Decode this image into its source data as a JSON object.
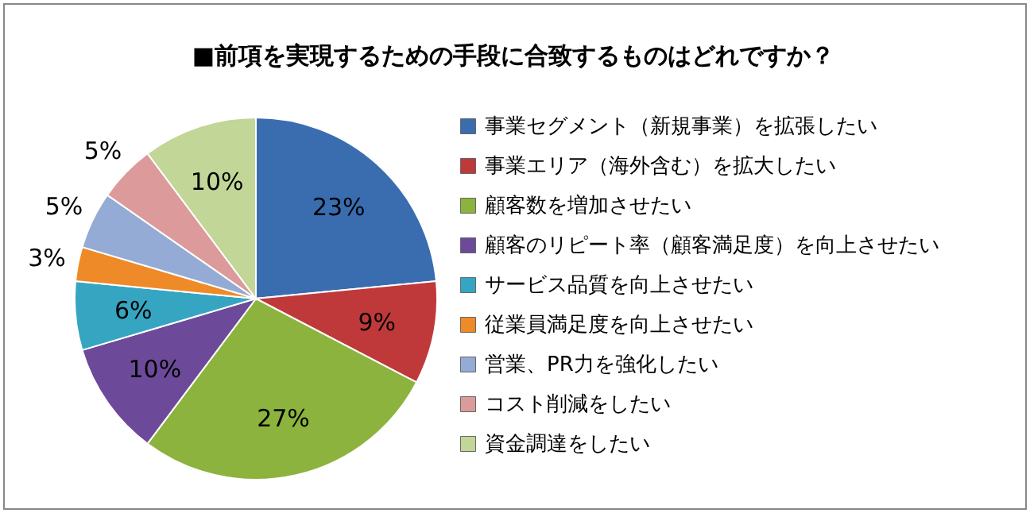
{
  "chart_data": {
    "type": "pie",
    "title": "■前項を実現するための手段に合致するものはどれですか？",
    "categories": [
      "事業セグメント（新規事業）を拡張したい",
      "事業エリア（海外含む）を拡大したい",
      "顧客数を増加させたい",
      "顧客のリピート率（顧客満足度）を向上させたい",
      "サービス品質を向上させたい",
      "従業員満足度を向上させたい",
      "営業、PR力を強化したい",
      "コスト削減をしたい",
      "資金調達をしたい"
    ],
    "values": [
      23,
      9,
      27,
      10,
      6,
      3,
      5,
      5,
      10
    ],
    "colors": [
      "#3a6db0",
      "#c0393a",
      "#8cb33d",
      "#6c4a99",
      "#36a5c2",
      "#ef8a28",
      "#93abd5",
      "#dc9a9a",
      "#c1d697"
    ],
    "value_labels": [
      "23%",
      "9%",
      "27%",
      "10%",
      "6%",
      "3%",
      "5%",
      "5%",
      "10%"
    ],
    "legend": "right"
  }
}
